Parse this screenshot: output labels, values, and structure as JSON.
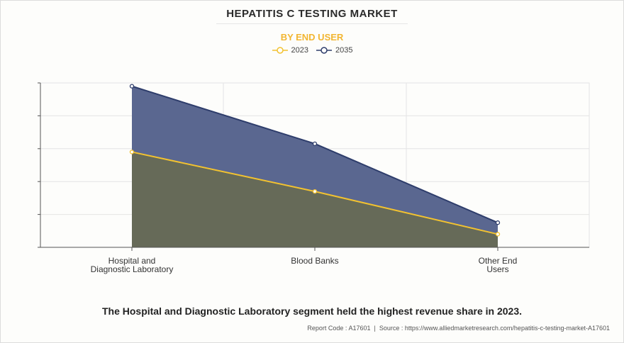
{
  "title": "HEPATITIS C TESTING MARKET",
  "subtitle": "BY END USER",
  "caption": "The Hospital and Diagnostic Laboratory segment held the highest revenue share in 2023.",
  "footer": {
    "report_code": "Report Code : A17601",
    "separator": "|",
    "source": "Source : https://www.alliedmarketresearch.com/hepatitis-c-testing-market-A17601"
  },
  "colors": {
    "series_2023_line": "#f2c230",
    "series_2035_line": "#2e3d6b",
    "area_2035": "#5a6790",
    "area_2023": "#666a58",
    "grid": "#e4e4e4",
    "axis": "#555555"
  },
  "chart_data": {
    "type": "area",
    "title": "HEPATITIS C TESTING MARKET",
    "subtitle": "BY END USER",
    "xlabel": "",
    "ylabel": "",
    "categories": [
      [
        "Hospital and",
        "Diagnostic Laboratory"
      ],
      [
        "Blood Banks"
      ],
      [
        "Other End",
        "Users"
      ]
    ],
    "series": [
      {
        "name": "2023",
        "values": [
          2.9,
          1.7,
          0.4
        ]
      },
      {
        "name": "2035",
        "values": [
          4.9,
          3.15,
          0.75
        ]
      }
    ],
    "ylim": [
      0,
      5
    ],
    "y_tick_count": 5,
    "y_tick_labels_shown": false,
    "grid": true,
    "legend_position": "top-center"
  }
}
